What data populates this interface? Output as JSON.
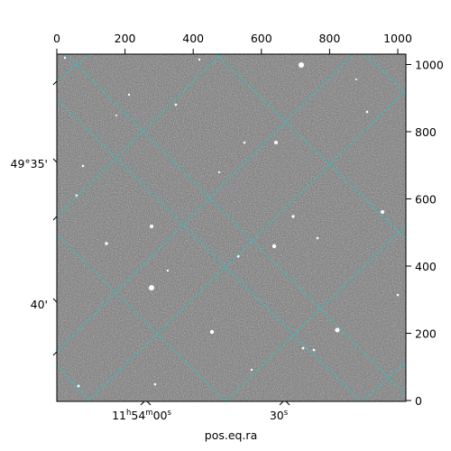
{
  "axes": {
    "xlabel": "pos.eq.ra",
    "top_ticks": [
      "0",
      "200",
      "400",
      "600",
      "800",
      "1000"
    ],
    "right_ticks": [
      "0",
      "200",
      "400",
      "600",
      "800",
      "1000"
    ],
    "left_ticks": [
      "49°35'",
      "40'"
    ],
    "ra_ticks": [
      {
        "hours": "11",
        "h_unit": "h",
        "minutes": "54",
        "m_unit": "m",
        "seconds": "00",
        "s_unit": "s"
      },
      {
        "seconds": "30",
        "s_unit": "s"
      }
    ]
  },
  "colors": {
    "grid": "#26c6c6",
    "image_dark": "#5a5a5a",
    "image_light": "#8c8c8c"
  }
}
